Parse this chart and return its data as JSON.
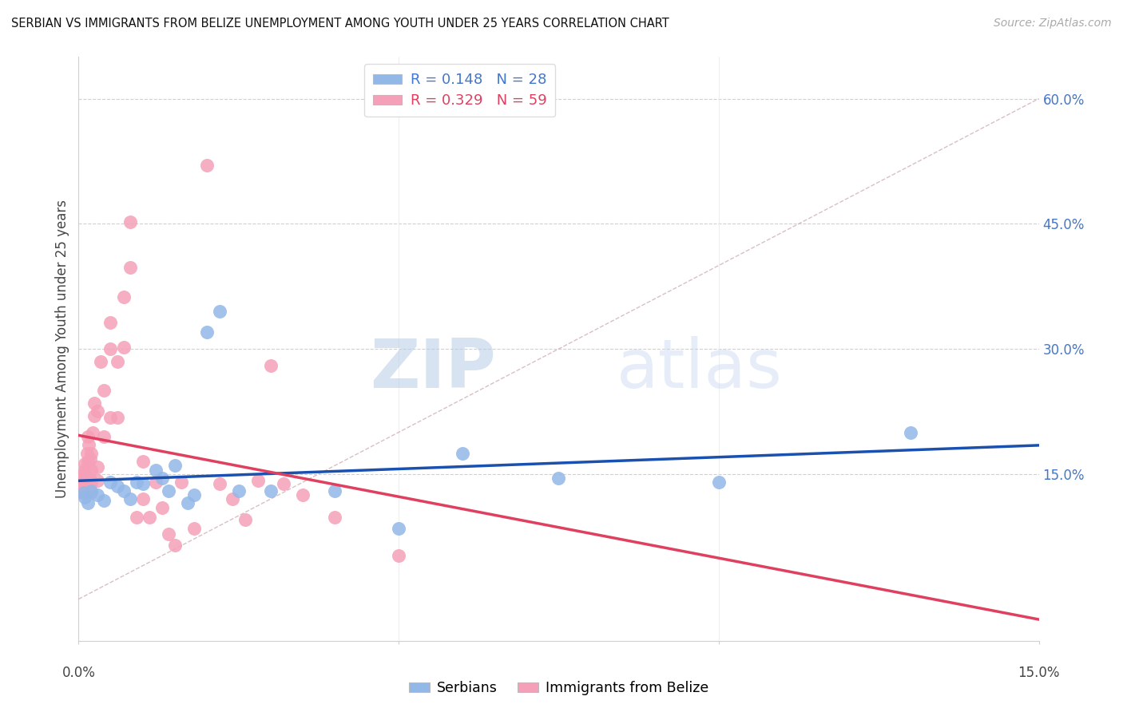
{
  "title": "SERBIAN VS IMMIGRANTS FROM BELIZE UNEMPLOYMENT AMONG YOUTH UNDER 25 YEARS CORRELATION CHART",
  "source": "Source: ZipAtlas.com",
  "ylabel": "Unemployment Among Youth under 25 years",
  "xlim": [
    0.0,
    0.15
  ],
  "ylim": [
    -0.05,
    0.65
  ],
  "ytick_values": [
    0.15,
    0.3,
    0.45,
    0.6
  ],
  "ytick_labels": [
    "15.0%",
    "30.0%",
    "45.0%",
    "60.0%"
  ],
  "legend_blue_R": "0.148",
  "legend_blue_N": "28",
  "legend_pink_R": "0.329",
  "legend_pink_N": "59",
  "legend_label_blue": "Serbians",
  "legend_label_pink": "Immigrants from Belize",
  "blue_color": "#92b8e8",
  "pink_color": "#f5a0b8",
  "blue_line_color": "#1a50b0",
  "pink_line_color": "#e04060",
  "diagonal_color": "#ccaab0",
  "watermark_zip": "ZIP",
  "watermark_atlas": "atlas",
  "blue_x": [
    0.0008,
    0.001,
    0.0015,
    0.002,
    0.003,
    0.004,
    0.005,
    0.006,
    0.007,
    0.008,
    0.009,
    0.01,
    0.012,
    0.013,
    0.014,
    0.015,
    0.017,
    0.018,
    0.02,
    0.022,
    0.025,
    0.03,
    0.04,
    0.05,
    0.06,
    0.075,
    0.1,
    0.13
  ],
  "blue_y": [
    0.128,
    0.122,
    0.115,
    0.13,
    0.125,
    0.118,
    0.14,
    0.135,
    0.13,
    0.12,
    0.14,
    0.138,
    0.155,
    0.145,
    0.13,
    0.16,
    0.115,
    0.125,
    0.32,
    0.345,
    0.13,
    0.13,
    0.13,
    0.085,
    0.175,
    0.145,
    0.14,
    0.2
  ],
  "pink_x": [
    0.0003,
    0.0004,
    0.0005,
    0.0006,
    0.0007,
    0.0008,
    0.0009,
    0.001,
    0.001,
    0.001,
    0.0012,
    0.0013,
    0.0014,
    0.0015,
    0.0016,
    0.0017,
    0.0018,
    0.002,
    0.002,
    0.002,
    0.002,
    0.0022,
    0.0024,
    0.0025,
    0.003,
    0.003,
    0.003,
    0.0035,
    0.004,
    0.004,
    0.005,
    0.005,
    0.005,
    0.006,
    0.006,
    0.007,
    0.007,
    0.008,
    0.008,
    0.009,
    0.01,
    0.01,
    0.011,
    0.012,
    0.013,
    0.014,
    0.015,
    0.016,
    0.018,
    0.02,
    0.022,
    0.024,
    0.026,
    0.028,
    0.03,
    0.032,
    0.035,
    0.04,
    0.05
  ],
  "pink_y": [
    0.135,
    0.128,
    0.145,
    0.138,
    0.15,
    0.142,
    0.155,
    0.13,
    0.148,
    0.162,
    0.135,
    0.175,
    0.165,
    0.195,
    0.185,
    0.145,
    0.168,
    0.128,
    0.14,
    0.155,
    0.175,
    0.2,
    0.22,
    0.235,
    0.142,
    0.158,
    0.225,
    0.285,
    0.195,
    0.25,
    0.218,
    0.3,
    0.332,
    0.218,
    0.285,
    0.302,
    0.362,
    0.398,
    0.452,
    0.098,
    0.12,
    0.165,
    0.098,
    0.14,
    0.11,
    0.078,
    0.065,
    0.14,
    0.085,
    0.52,
    0.138,
    0.12,
    0.095,
    0.142,
    0.28,
    0.138,
    0.125,
    0.098,
    0.052
  ]
}
